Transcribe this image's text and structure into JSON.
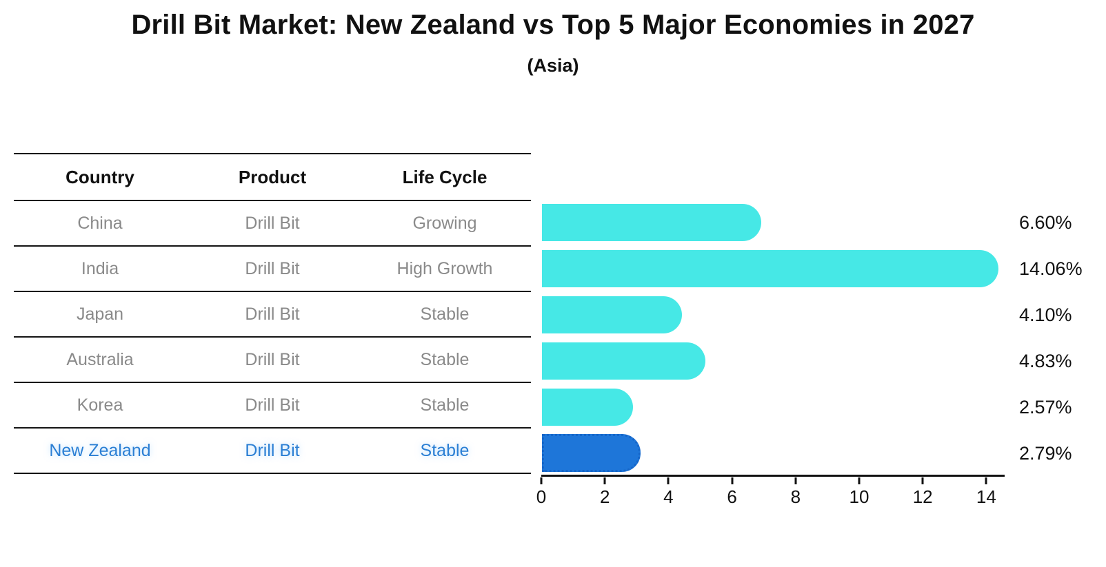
{
  "header": {
    "title": "Drill Bit Market: New Zealand vs Top 5 Major Economies in 2027",
    "subtitle": "(Asia)"
  },
  "table": {
    "headers": [
      "Country",
      "Product",
      "Life Cycle"
    ],
    "rows": [
      {
        "country": "China",
        "product": "Drill Bit",
        "life_cycle": "Growing",
        "highlighted": false
      },
      {
        "country": "India",
        "product": "Drill Bit",
        "life_cycle": "High Growth",
        "highlighted": false
      },
      {
        "country": "Japan",
        "product": "Drill Bit",
        "life_cycle": "Stable",
        "highlighted": false
      },
      {
        "country": "Australia",
        "product": "Drill Bit",
        "life_cycle": "Stable",
        "highlighted": false
      },
      {
        "country": "Korea",
        "product": "Drill Bit",
        "life_cycle": "Stable",
        "highlighted": false
      },
      {
        "country": "New Zealand",
        "product": "Drill Bit",
        "life_cycle": "Stable",
        "highlighted": true
      }
    ]
  },
  "chart_data": {
    "type": "bar",
    "orientation": "horizontal",
    "title": "Drill Bit Market: New Zealand vs Top 5 Major Economies in 2027",
    "subtitle": "(Asia)",
    "categories": [
      "China",
      "India",
      "Japan",
      "Australia",
      "Korea",
      "New Zealand"
    ],
    "values": [
      6.6,
      14.06,
      4.1,
      4.83,
      2.57,
      2.79
    ],
    "value_labels": [
      "6.60%",
      "14.06%",
      "4.10%",
      "4.83%",
      "2.57%",
      "2.79%"
    ],
    "x_ticks": [
      0,
      2,
      4,
      6,
      8,
      10,
      12,
      14
    ],
    "xlim": [
      0,
      14.6
    ],
    "xlabel": "",
    "ylabel": "",
    "grid": false,
    "legend": false,
    "bar_color": "#46E8E6",
    "highlight_color": "#1E76D9",
    "highlight_index": 5,
    "label_color_normal": "#8a8a8a",
    "label_color_highlight": "#2b7fd4",
    "axis_color": "#111111"
  }
}
